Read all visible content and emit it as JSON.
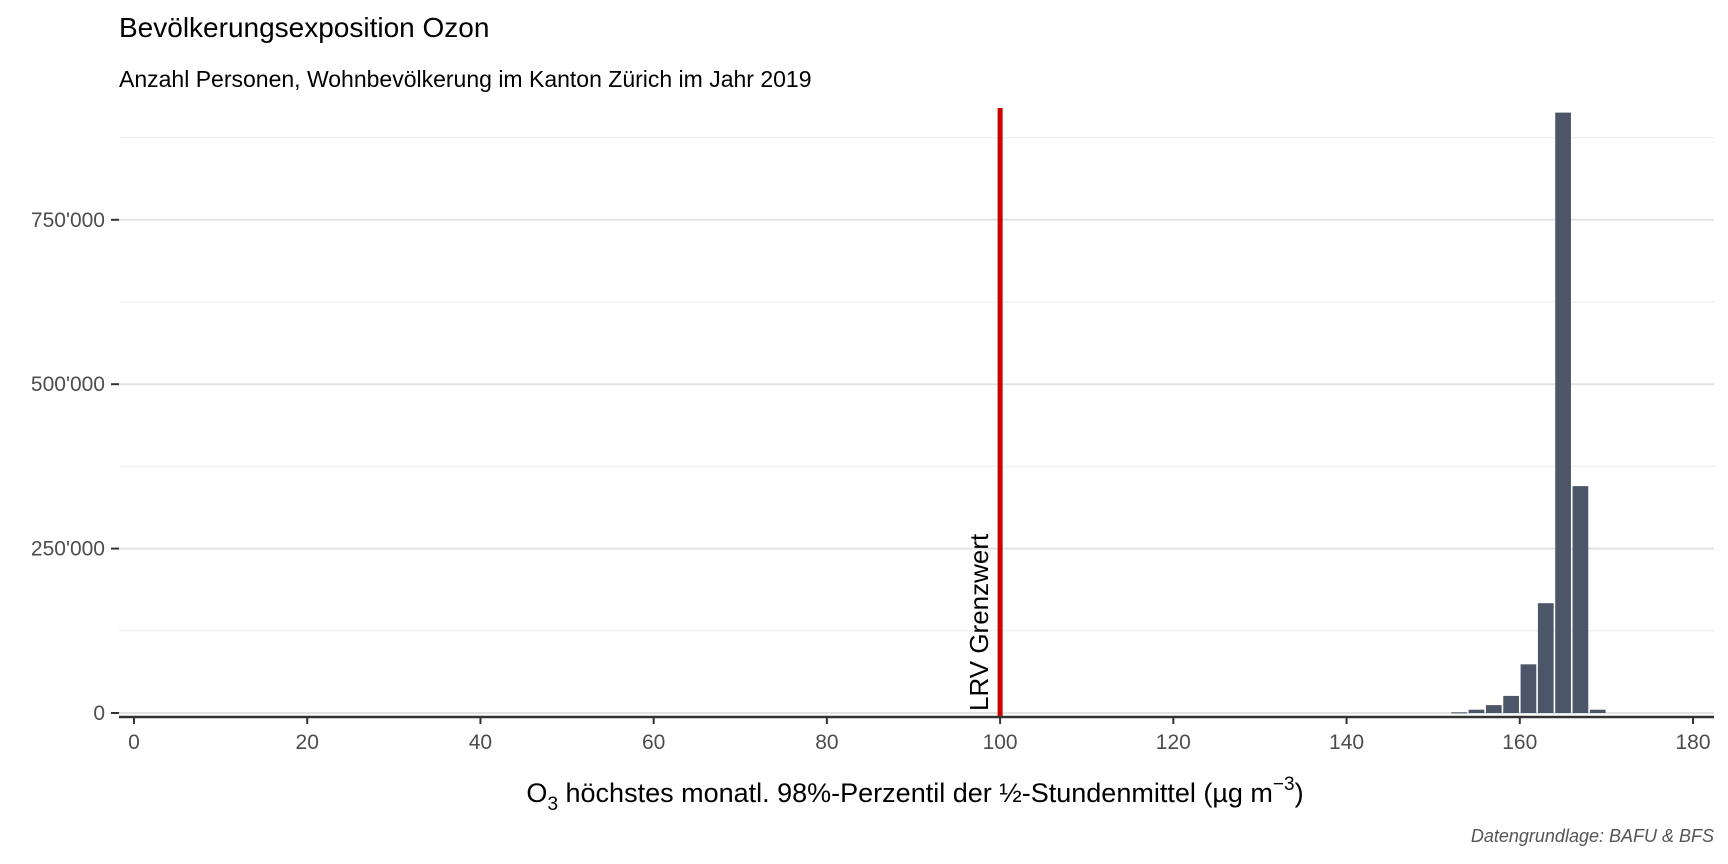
{
  "chart_data": {
    "type": "bar",
    "title": "Bevölkerungsexposition Ozon",
    "subtitle": "Anzahl Personen, Wohnbevölkerung im Kanton Zürich im Jahr 2019",
    "xlabel_parts": [
      "O",
      "3",
      " höchstes monatl. 98%-Perzentil der ½-Stundenmittel (µg m",
      "−3",
      ")"
    ],
    "caption": "Datengrundlage: BAFU & BFS",
    "xlim": [
      0,
      180
    ],
    "ylim": [
      0,
      920000
    ],
    "x_ticks": [
      0,
      20,
      40,
      60,
      80,
      100,
      120,
      140,
      160,
      180
    ],
    "x_tick_labels": [
      "0",
      "20",
      "40",
      "60",
      "80",
      "100",
      "120",
      "140",
      "160",
      "180"
    ],
    "y_ticks": [
      0,
      250000,
      500000,
      750000
    ],
    "y_tick_labels": [
      "0",
      "250'000",
      "500'000",
      "750'000"
    ],
    "y_minor_ticks": [
      125000,
      375000,
      625000,
      875000
    ],
    "bin_width": 2,
    "bins": [
      {
        "x": 153,
        "value": 1000
      },
      {
        "x": 155,
        "value": 5000
      },
      {
        "x": 157,
        "value": 12000
      },
      {
        "x": 159,
        "value": 26000
      },
      {
        "x": 161,
        "value": 74000
      },
      {
        "x": 163,
        "value": 167000
      },
      {
        "x": 165,
        "value": 913000
      },
      {
        "x": 167,
        "value": 345000
      },
      {
        "x": 169,
        "value": 5000
      }
    ],
    "bar_color": "#4d5568",
    "reference_line": {
      "x": 100,
      "label": "LRV Grenzwert",
      "color": "#cc0000"
    },
    "grid": true,
    "legend": "none"
  }
}
